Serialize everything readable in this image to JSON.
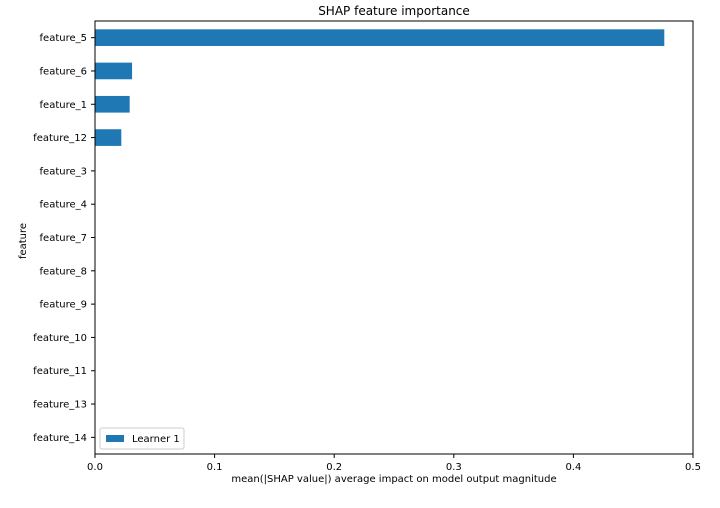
{
  "chart_data": {
    "type": "bar",
    "orientation": "horizontal",
    "title": "SHAP feature importance",
    "xlabel": "mean(|SHAP value|) average impact on model output magnitude",
    "ylabel": "feature",
    "categories": [
      "feature_5",
      "feature_6",
      "feature_1",
      "feature_12",
      "feature_3",
      "feature_4",
      "feature_7",
      "feature_8",
      "feature_9",
      "feature_10",
      "feature_11",
      "feature_13",
      "feature_14"
    ],
    "series": [
      {
        "name": "Learner 1",
        "color": "#1f77b4",
        "values": [
          0.476,
          0.031,
          0.029,
          0.022,
          0,
          0,
          0,
          0,
          0,
          0,
          0,
          0,
          0
        ]
      }
    ],
    "xlim": [
      0,
      0.5
    ],
    "xticks": [
      0,
      0.1,
      0.2,
      0.3,
      0.4,
      0.5
    ],
    "xtick_labels": [
      "0.0",
      "0.1",
      "0.2",
      "0.3",
      "0.4",
      "0.5"
    ],
    "grid": false,
    "legend_position": "lower-left"
  }
}
